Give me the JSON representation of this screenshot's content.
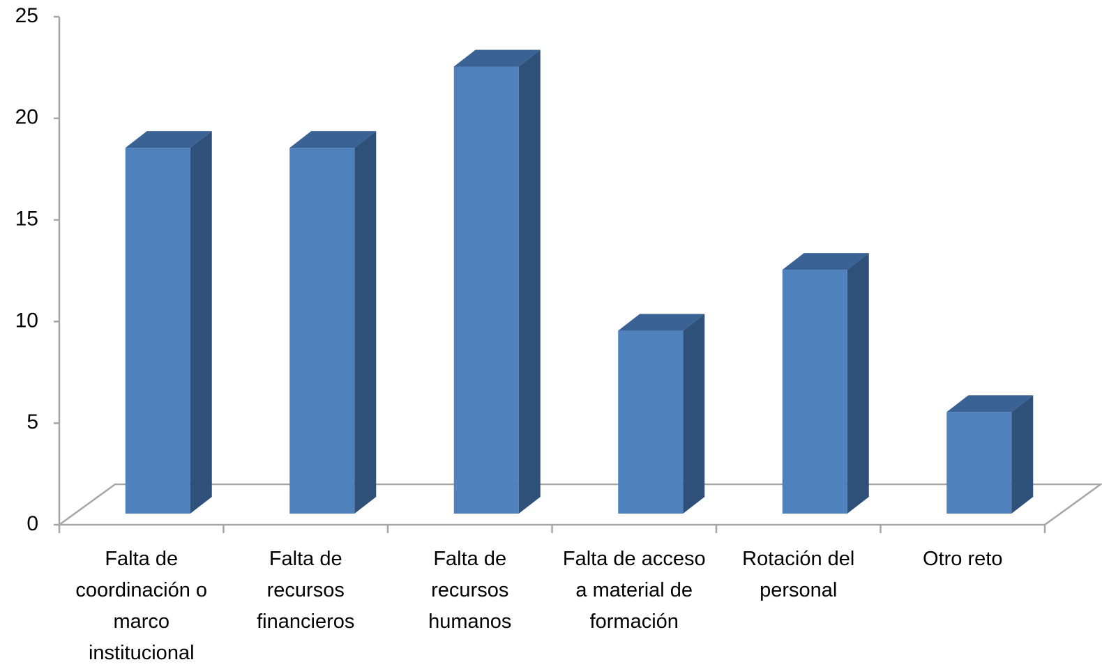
{
  "chart_data": {
    "type": "bar3d",
    "categories": [
      "Falta de coordinación o marco institucional",
      "Falta de recursos financieros",
      "Falta de recursos humanos",
      "Falta de acceso a material de formación",
      "Rotación del personal",
      "Otro reto"
    ],
    "values": [
      18,
      18,
      22,
      9,
      12,
      5
    ],
    "color": "#4f81bd",
    "ylim": [
      0,
      25
    ],
    "yticks": [
      0,
      5,
      10,
      15,
      20,
      25
    ]
  }
}
